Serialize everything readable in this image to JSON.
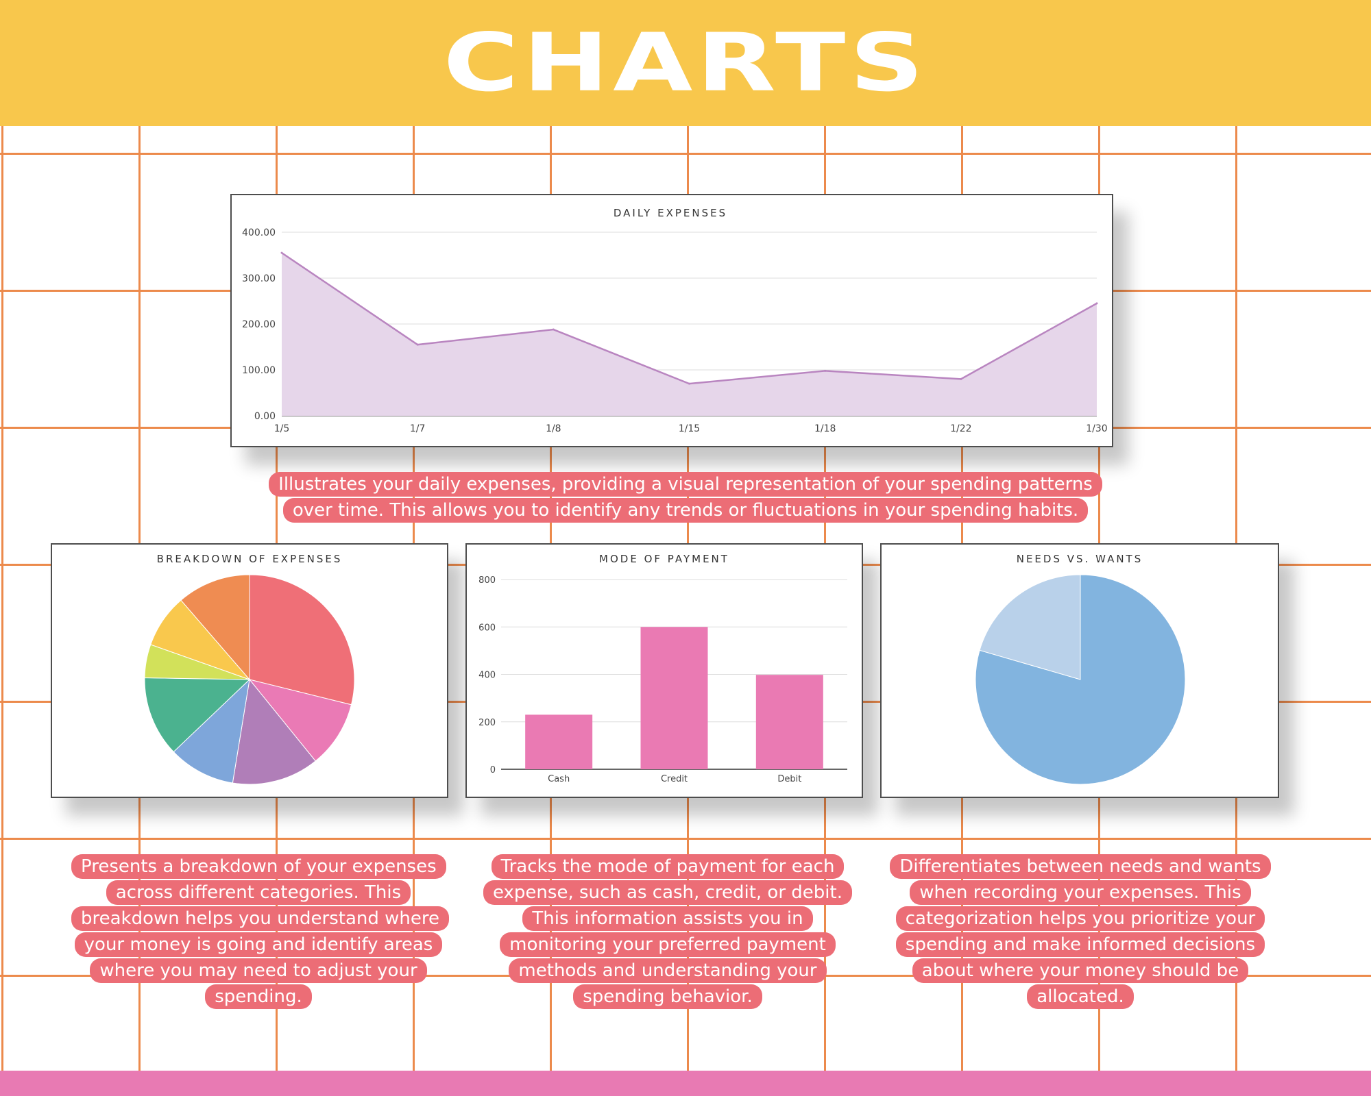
{
  "page": {
    "title": "CHARTS",
    "colors": {
      "header": "#f8c74c",
      "grid": "#ec8a4c",
      "footer": "#e87ab3",
      "caption_bg": "#ec6d76"
    }
  },
  "captions": {
    "daily": "Illustrates your daily expenses, providing a visual representation of your spending patterns over time. This allows you to identify any trends or fluctuations in your spending habits.",
    "breakdown": "Presents a breakdown of your expenses across different categories. This breakdown helps you understand where your money is going and identify areas where you may need to adjust your spending.",
    "payment": "Tracks the mode of payment for each expense, such as cash, credit, or debit. This information assists you in monitoring your preferred payment methods and understanding your spending behavior.",
    "needs": "Differentiates between needs and wants when recording your expenses. This categorization helps you prioritize your spending and make informed decisions about where your money should be allocated."
  },
  "chart_data": [
    {
      "type": "area",
      "title": "DAILY EXPENSES",
      "categories": [
        "1/5",
        "1/7",
        "1/8",
        "1/15",
        "1/18",
        "1/22",
        "1/30"
      ],
      "values": [
        355,
        155,
        188,
        70,
        98,
        80,
        245
      ],
      "y_ticks": [
        "0.00",
        "100.00",
        "200.00",
        "300.00",
        "400.00"
      ],
      "ylim": [
        0,
        400
      ],
      "grid": true,
      "colors": {
        "line": "#b985c0",
        "fill": "#e6d6ea"
      }
    },
    {
      "type": "pie",
      "title": "BREAKDOWN OF EXPENSES",
      "values": [
        28,
        10,
        13,
        10,
        12,
        5,
        8,
        11
      ],
      "colors": [
        "#ef6f77",
        "#ea7ab5",
        "#b07eb8",
        "#7ea6da",
        "#4bb28f",
        "#d2e15a",
        "#f9c84d",
        "#ef8c52"
      ],
      "legend": "none"
    },
    {
      "type": "bar",
      "title": "MODE OF PAYMENT",
      "categories": [
        "Cash",
        "Credit",
        "Debit"
      ],
      "values": [
        230,
        600,
        398
      ],
      "y_ticks": [
        "0",
        "200",
        "400",
        "600",
        "800"
      ],
      "ylim": [
        0,
        800
      ],
      "grid": true,
      "colors": {
        "bar": "#ea7ab3"
      }
    },
    {
      "type": "pie",
      "title": "NEEDS VS. WANTS",
      "values": [
        79.5,
        20.5
      ],
      "colors": [
        "#82b4df",
        "#b9d1ea"
      ],
      "legend": "none"
    }
  ]
}
